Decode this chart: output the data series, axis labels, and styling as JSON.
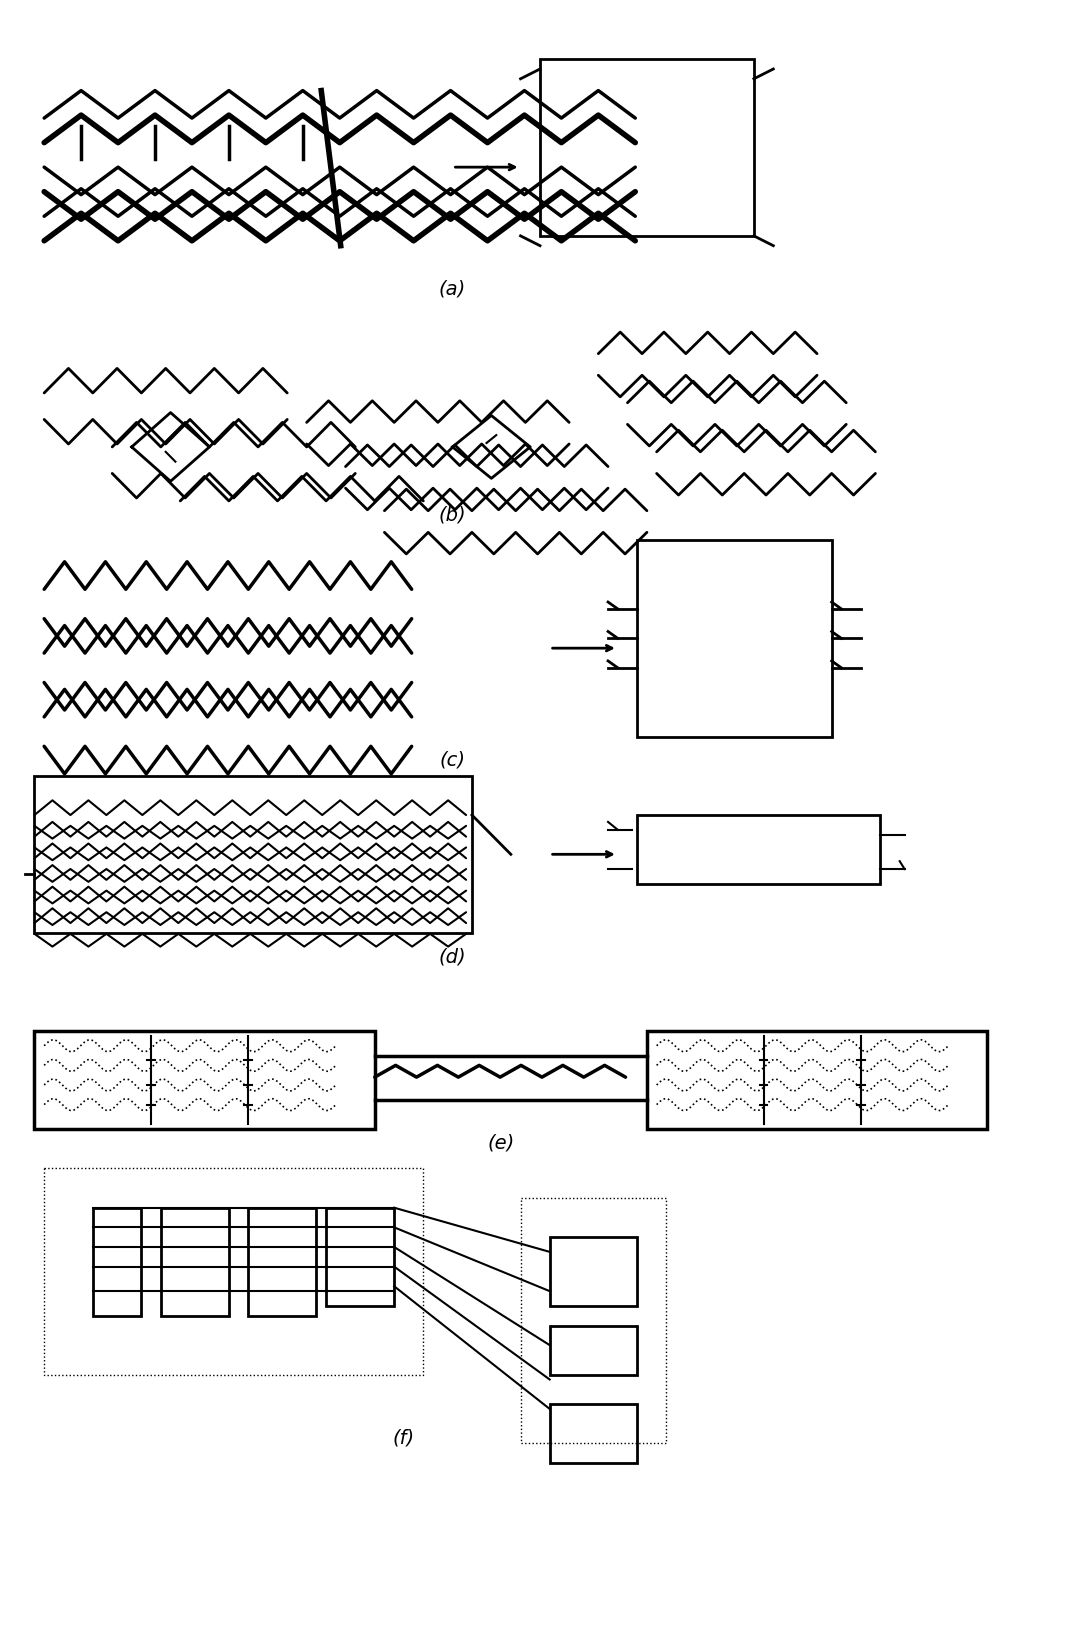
{
  "fig_width": 10.79,
  "fig_height": 16.35,
  "background_color": "#ffffff",
  "labels": [
    "(a)",
    "(b)",
    "(c)",
    "(d)",
    "(e)",
    "(f)"
  ],
  "label_fontsize": 14
}
